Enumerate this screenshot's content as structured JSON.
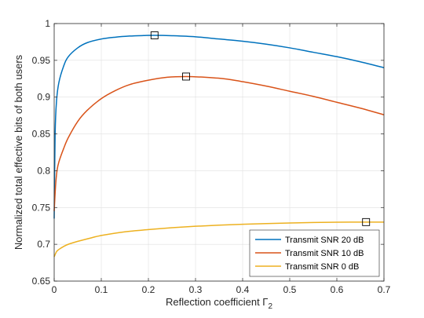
{
  "chart_data": {
    "type": "line",
    "xlabel": "Reflection coefficient Γ",
    "xlabel_subscript": "2",
    "ylabel": "Normalized total effective bits of both users",
    "xlim": [
      0,
      0.7
    ],
    "ylim": [
      0.65,
      1.0
    ],
    "xticks": [
      0,
      0.1,
      0.2,
      0.3,
      0.4,
      0.5,
      0.6,
      0.7
    ],
    "xtick_labels": [
      "0",
      "0.1",
      "0.2",
      "0.3",
      "0.4",
      "0.5",
      "0.6",
      "0.7"
    ],
    "yticks": [
      0.65,
      0.7,
      0.75,
      0.8,
      0.85,
      0.9,
      0.95,
      1.0
    ],
    "ytick_labels": [
      "0.65",
      "0.7",
      "0.75",
      "0.8",
      "0.85",
      "0.9",
      "0.95",
      "1"
    ],
    "grid": true,
    "legend_position": "bottom-right",
    "series": [
      {
        "name": "Transmit SNR 20 dB",
        "color": "#0072BD",
        "x": [
          0,
          0.002,
          0.005,
          0.01,
          0.02,
          0.03,
          0.05,
          0.07,
          0.1,
          0.13,
          0.16,
          0.19,
          0.213,
          0.25,
          0.3,
          0.35,
          0.4,
          0.45,
          0.5,
          0.55,
          0.6,
          0.65,
          0.7
        ],
        "y": [
          0.735,
          0.85,
          0.895,
          0.92,
          0.942,
          0.955,
          0.967,
          0.974,
          0.979,
          0.9815,
          0.983,
          0.9837,
          0.984,
          0.9835,
          0.982,
          0.979,
          0.976,
          0.972,
          0.967,
          0.961,
          0.955,
          0.948,
          0.94
        ]
      },
      {
        "name": "Transmit SNR 10 dB",
        "color": "#D95319",
        "x": [
          0,
          0.003,
          0.006,
          0.01,
          0.02,
          0.03,
          0.05,
          0.07,
          0.1,
          0.13,
          0.16,
          0.2,
          0.24,
          0.28,
          0.32,
          0.36,
          0.4,
          0.45,
          0.5,
          0.55,
          0.6,
          0.65,
          0.7
        ],
        "y": [
          0.745,
          0.78,
          0.8,
          0.812,
          0.83,
          0.845,
          0.867,
          0.882,
          0.898,
          0.909,
          0.917,
          0.923,
          0.927,
          0.928,
          0.927,
          0.925,
          0.921,
          0.915,
          0.908,
          0.901,
          0.893,
          0.885,
          0.876
        ]
      },
      {
        "name": "Transmit SNR 0 dB",
        "color": "#EDB120",
        "x": [
          0,
          0.005,
          0.01,
          0.02,
          0.03,
          0.05,
          0.08,
          0.1,
          0.15,
          0.2,
          0.25,
          0.3,
          0.35,
          0.4,
          0.45,
          0.5,
          0.55,
          0.6,
          0.662,
          0.7
        ],
        "y": [
          0.683,
          0.69,
          0.693,
          0.697,
          0.7,
          0.704,
          0.709,
          0.712,
          0.717,
          0.72,
          0.7225,
          0.7245,
          0.726,
          0.7272,
          0.7282,
          0.729,
          0.7296,
          0.73,
          0.7302,
          0.7302
        ]
      }
    ],
    "markers": [
      {
        "x": 0.213,
        "y": 0.984,
        "shape": "square"
      },
      {
        "x": 0.28,
        "y": 0.928,
        "shape": "square"
      },
      {
        "x": 0.662,
        "y": 0.7302,
        "shape": "square"
      }
    ]
  }
}
